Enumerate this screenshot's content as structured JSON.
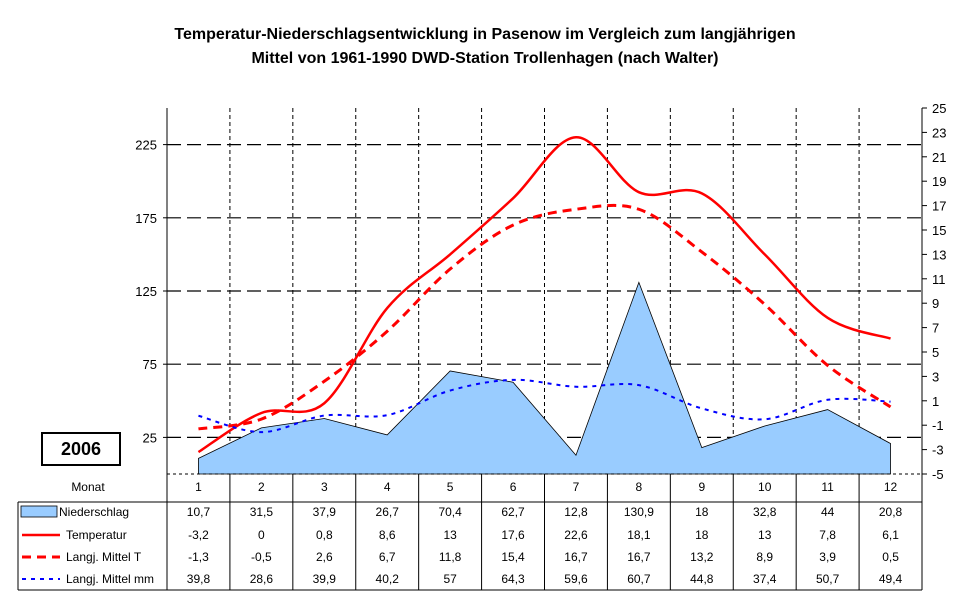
{
  "chart_data": {
    "type": "line",
    "title_line1": "Temperatur-Niederschlagsentwicklung in Pasenow im Vergleich zum langjährigen",
    "title_line2": "Mittel von 1961-1990 DWD-Station Trollenhagen (nach Walter)",
    "year_label": "2006",
    "x_header": "Monat",
    "categories": [
      "1",
      "2",
      "3",
      "4",
      "5",
      "6",
      "7",
      "8",
      "9",
      "10",
      "11",
      "12"
    ],
    "y_left": {
      "ticks": [
        "25",
        "75",
        "125",
        "175",
        "225"
      ],
      "range": [
        0,
        250
      ]
    },
    "y_right": {
      "ticks": [
        "-5",
        "-3",
        "-1",
        "1",
        "3",
        "5",
        "7",
        "9",
        "11",
        "13",
        "15",
        "17",
        "19",
        "21",
        "23",
        "25"
      ],
      "range": [
        -5,
        25
      ]
    },
    "grid": true,
    "series": [
      {
        "name": "Niederschlag",
        "axis": "left",
        "style": "area",
        "color": "#99CCFF",
        "values": [
          10.7,
          31.5,
          37.9,
          26.7,
          70.4,
          62.7,
          12.8,
          130.9,
          18,
          32.8,
          44,
          20.8
        ],
        "labels": [
          "10,7",
          "31,5",
          "37,9",
          "26,7",
          "70,4",
          "62,7",
          "12,8",
          "130,9",
          "18",
          "32,8",
          "44",
          "20,8"
        ]
      },
      {
        "name": "Temperatur",
        "axis": "right",
        "style": "solid",
        "color": "#FF0000",
        "values": [
          -3.2,
          0,
          0.8,
          8.6,
          13,
          17.6,
          22.6,
          18.1,
          18,
          13,
          7.8,
          6.1
        ],
        "labels": [
          "-3,2",
          "0",
          "0,8",
          "8,6",
          "13",
          "17,6",
          "22,6",
          "18,1",
          "18",
          "13",
          "7,8",
          "6,1"
        ]
      },
      {
        "name": "Langj. Mittel T",
        "axis": "right",
        "style": "dashed",
        "color": "#FF0000",
        "values": [
          -1.3,
          -0.5,
          2.6,
          6.7,
          11.8,
          15.4,
          16.7,
          16.7,
          13.2,
          8.9,
          3.9,
          0.5
        ],
        "labels": [
          "-1,3",
          "-0,5",
          "2,6",
          "6,7",
          "11,8",
          "15,4",
          "16,7",
          "16,7",
          "13,2",
          "8,9",
          "3,9",
          "0,5"
        ]
      },
      {
        "name": "Langj. Mittel mm",
        "axis": "left",
        "style": "dotted",
        "color": "#0000FF",
        "values": [
          39.8,
          28.6,
          39.9,
          40.2,
          57,
          64.3,
          59.6,
          60.7,
          44.8,
          37.4,
          50.7,
          49.4
        ],
        "labels": [
          "39,8",
          "28,6",
          "39,9",
          "40,2",
          "57",
          "64,3",
          "59,6",
          "60,7",
          "44,8",
          "37,4",
          "50,7",
          "49,4"
        ]
      }
    ]
  }
}
